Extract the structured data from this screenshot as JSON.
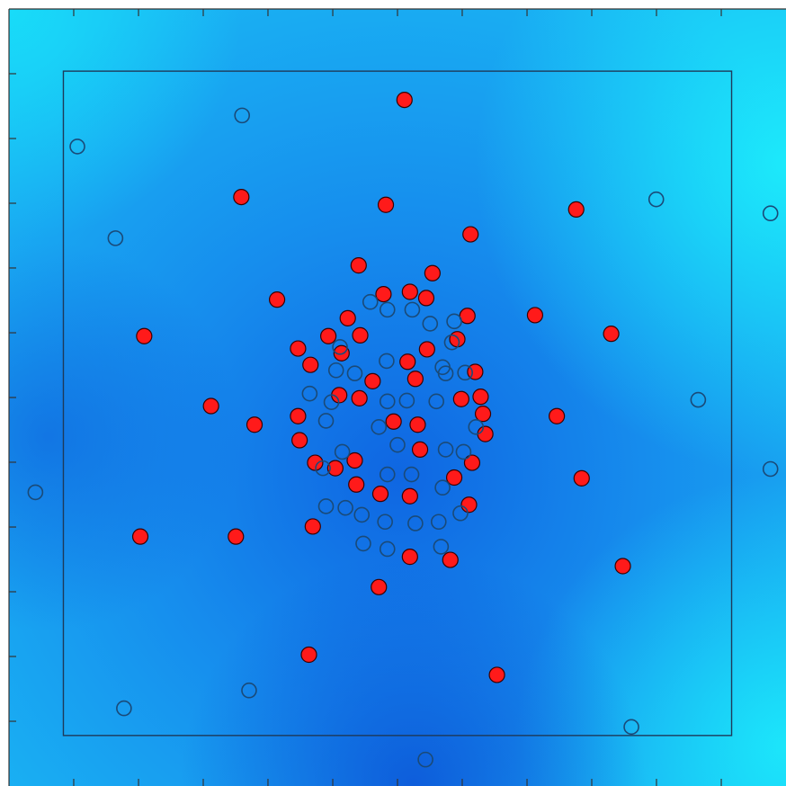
{
  "chart_data": {
    "type": "scatter",
    "title": "",
    "xlabel": "",
    "ylabel": "",
    "xlim": [
      0,
      100
    ],
    "ylim": [
      0,
      100
    ],
    "x_ticks": [
      8.33,
      16.67,
      25,
      33.33,
      41.67,
      50,
      58.33,
      66.67,
      75,
      83.33,
      91.67
    ],
    "y_ticks": [
      8.33,
      16.67,
      25,
      33.33,
      41.67,
      50,
      58.33,
      66.67,
      75,
      83.33,
      91.67
    ],
    "tick_labels_shown": false,
    "grid": false,
    "legend": "none",
    "inner_box": {
      "x": [
        7,
        93
      ],
      "y": [
        6.5,
        92
      ]
    },
    "background": {
      "kind": "heatmap",
      "colors": [
        "#0d5fe0",
        "#1a8ff0",
        "#1fb8f4",
        "#18e6fa"
      ]
    },
    "series": [
      {
        "marker": "filled-circle",
        "color": "#ff1a1a",
        "edge_color": "#3a0000",
        "points": [
          [
            50.9,
            88.3
          ],
          [
            29.9,
            75.8
          ],
          [
            48.5,
            74.8
          ],
          [
            59.4,
            71.0
          ],
          [
            73.0,
            74.2
          ],
          [
            45.0,
            67.0
          ],
          [
            54.5,
            66.0
          ],
          [
            34.5,
            62.6
          ],
          [
            48.2,
            63.3
          ],
          [
            51.6,
            63.6
          ],
          [
            53.7,
            62.8
          ],
          [
            17.4,
            57.9
          ],
          [
            43.6,
            60.2
          ],
          [
            45.2,
            58.0
          ],
          [
            59.0,
            60.5
          ],
          [
            67.7,
            60.6
          ],
          [
            77.5,
            58.2
          ],
          [
            41.1,
            57.9
          ],
          [
            37.2,
            56.3
          ],
          [
            42.8,
            55.7
          ],
          [
            53.8,
            56.2
          ],
          [
            57.7,
            57.5
          ],
          [
            38.8,
            54.2
          ],
          [
            51.3,
            54.6
          ],
          [
            60.0,
            53.3
          ],
          [
            46.8,
            52.1
          ],
          [
            52.3,
            52.4
          ],
          [
            42.5,
            50.3
          ],
          [
            45.1,
            49.9
          ],
          [
            58.2,
            49.8
          ],
          [
            60.7,
            50.1
          ],
          [
            26.0,
            48.9
          ],
          [
            61.0,
            47.9
          ],
          [
            70.5,
            47.6
          ],
          [
            37.2,
            47.6
          ],
          [
            31.6,
            46.5
          ],
          [
            49.5,
            46.9
          ],
          [
            52.6,
            46.5
          ],
          [
            61.3,
            45.3
          ],
          [
            37.4,
            44.5
          ],
          [
            52.9,
            43.3
          ],
          [
            39.4,
            41.6
          ],
          [
            44.5,
            41.9
          ],
          [
            42.0,
            40.9
          ],
          [
            59.6,
            41.6
          ],
          [
            44.7,
            38.8
          ],
          [
            57.3,
            39.7
          ],
          [
            73.7,
            39.6
          ],
          [
            47.8,
            37.6
          ],
          [
            51.6,
            37.3
          ],
          [
            59.2,
            36.2
          ],
          [
            39.1,
            33.4
          ],
          [
            16.9,
            32.1
          ],
          [
            29.2,
            32.1
          ],
          [
            51.6,
            29.5
          ],
          [
            56.8,
            29.1
          ],
          [
            79.0,
            28.3
          ],
          [
            47.6,
            25.6
          ],
          [
            38.6,
            16.9
          ],
          [
            62.8,
            14.3
          ]
        ]
      },
      {
        "marker": "open-circle",
        "color": "#1a4a78",
        "points": [
          [
            30.0,
            86.3
          ],
          [
            8.8,
            82.3
          ],
          [
            83.3,
            75.5
          ],
          [
            98.0,
            73.7
          ],
          [
            13.7,
            70.5
          ],
          [
            46.5,
            62.3
          ],
          [
            48.7,
            61.3
          ],
          [
            51.9,
            61.3
          ],
          [
            54.2,
            59.5
          ],
          [
            57.3,
            59.8
          ],
          [
            57.0,
            57.1
          ],
          [
            42.6,
            56.5
          ],
          [
            48.6,
            54.7
          ],
          [
            55.8,
            53.9
          ],
          [
            42.1,
            53.5
          ],
          [
            44.5,
            53.1
          ],
          [
            56.2,
            53.1
          ],
          [
            58.7,
            53.2
          ],
          [
            38.7,
            50.5
          ],
          [
            41.5,
            49.4
          ],
          [
            48.7,
            49.5
          ],
          [
            51.2,
            49.6
          ],
          [
            55.0,
            49.5
          ],
          [
            88.7,
            49.7
          ],
          [
            40.8,
            47.0
          ],
          [
            47.6,
            46.2
          ],
          [
            60.1,
            46.2
          ],
          [
            50.0,
            43.9
          ],
          [
            56.2,
            43.3
          ],
          [
            58.5,
            43.0
          ],
          [
            42.9,
            43.0
          ],
          [
            40.4,
            40.9
          ],
          [
            48.7,
            40.1
          ],
          [
            51.8,
            40.1
          ],
          [
            55.8,
            38.4
          ],
          [
            40.8,
            36.0
          ],
          [
            43.3,
            35.8
          ],
          [
            45.4,
            34.9
          ],
          [
            58.1,
            35.1
          ],
          [
            48.4,
            34.0
          ],
          [
            52.3,
            33.8
          ],
          [
            55.3,
            34.0
          ],
          [
            45.6,
            31.2
          ],
          [
            48.7,
            30.5
          ],
          [
            55.6,
            30.8
          ],
          [
            3.4,
            37.8
          ],
          [
            98.0,
            40.8
          ],
          [
            30.9,
            12.3
          ],
          [
            14.8,
            10.0
          ],
          [
            80.1,
            7.6
          ],
          [
            53.6,
            3.4
          ]
        ]
      }
    ]
  }
}
